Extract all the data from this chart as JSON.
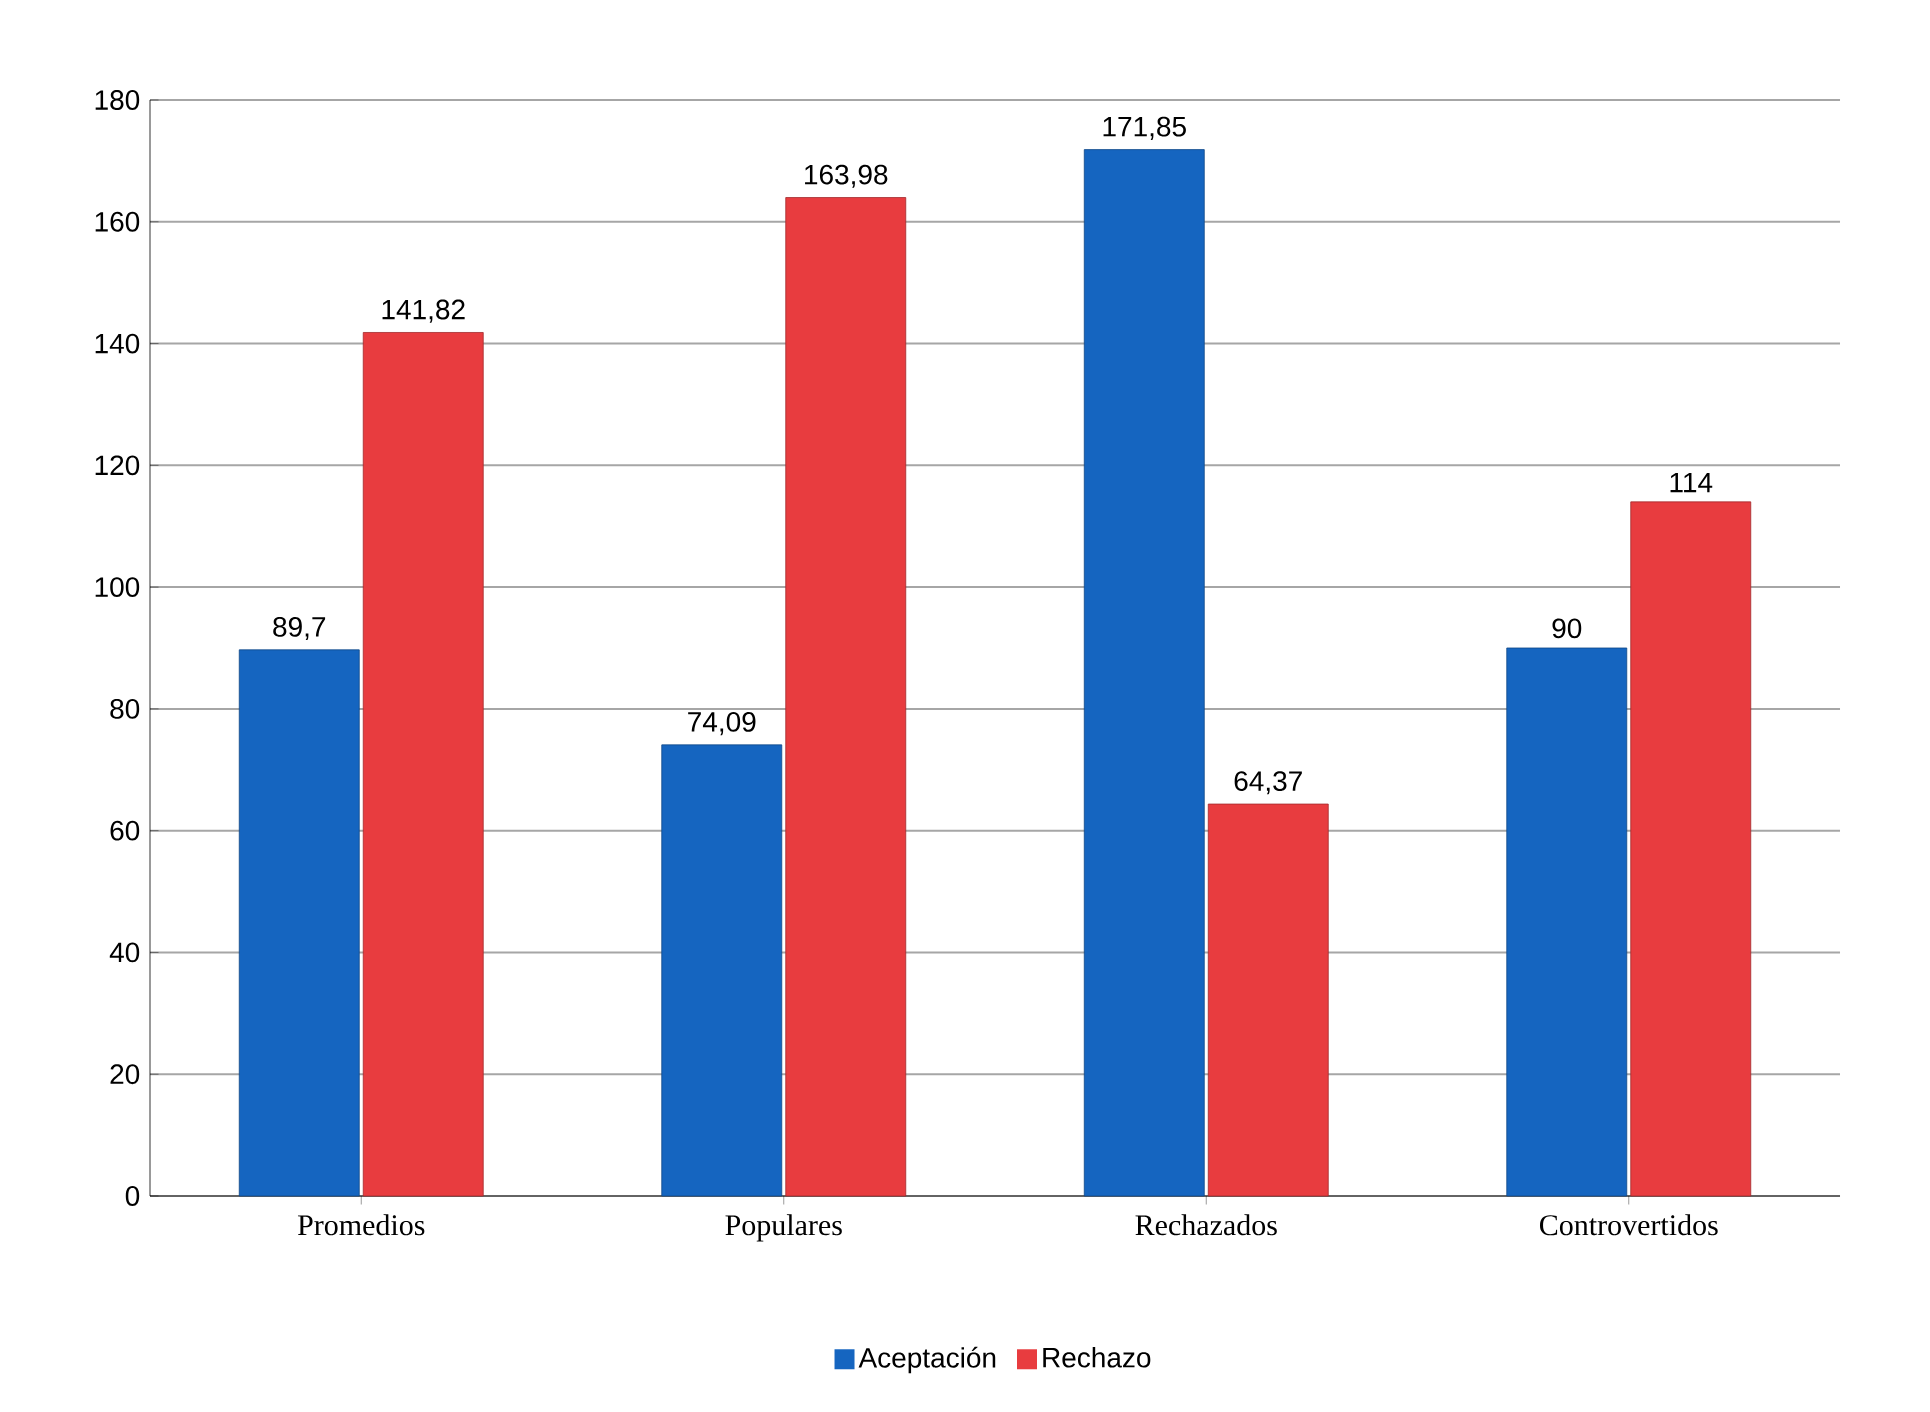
{
  "chart_data": {
    "type": "bar",
    "categories": [
      "Promedios",
      "Populares",
      "Rechazados",
      "Controvertidos"
    ],
    "series": [
      {
        "name": "Aceptación",
        "color": "#1565c0",
        "values": [
          89.7,
          74.09,
          171.85,
          90
        ],
        "value_labels": [
          "89,7",
          "74,09",
          "171,85",
          "90"
        ]
      },
      {
        "name": "Rechazo",
        "color": "#e83c3f",
        "values": [
          141.82,
          163.98,
          64.37,
          114
        ],
        "value_labels": [
          "141,82",
          "163,98",
          "64,37",
          "114"
        ]
      }
    ],
    "ylim": [
      0,
      180
    ],
    "yticks": [
      0,
      20,
      40,
      60,
      80,
      100,
      120,
      140,
      160,
      180
    ],
    "grid": "y",
    "legend": "bottom"
  }
}
